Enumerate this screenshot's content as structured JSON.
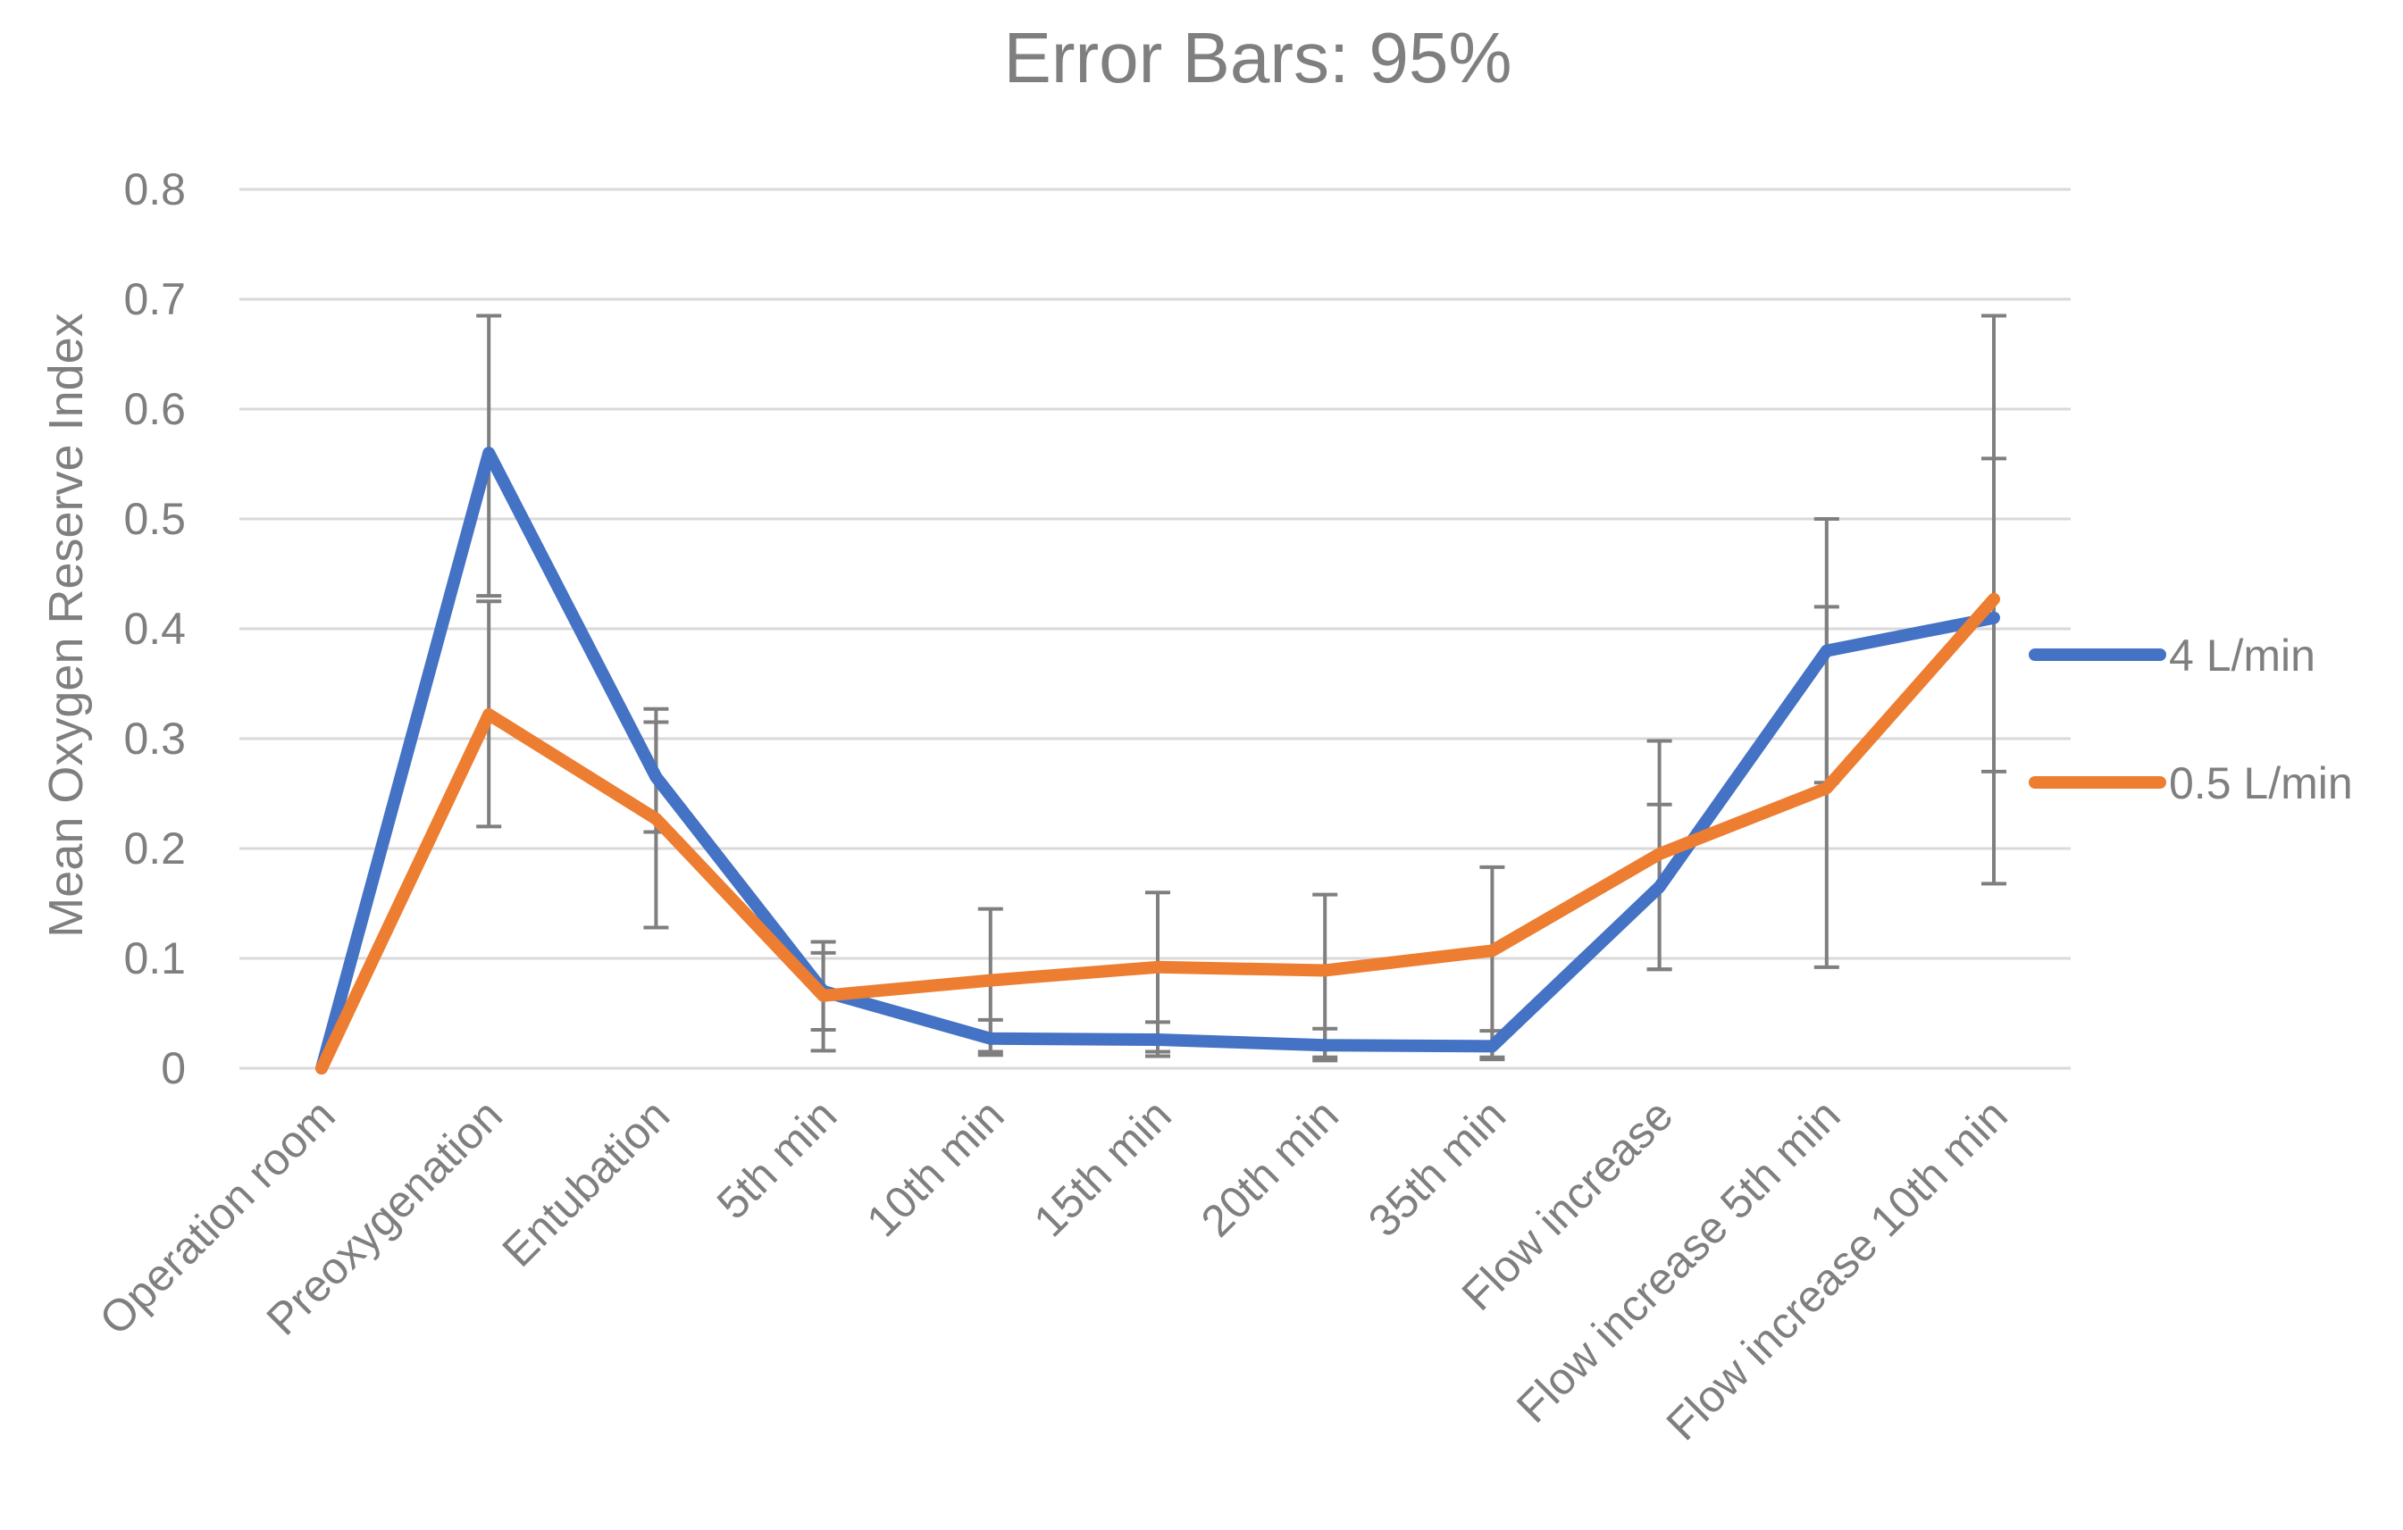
{
  "chart_data": {
    "type": "line",
    "title": "Error Bars: 95%",
    "xlabel": "",
    "ylabel": "Mean Oxygen Reserve Index",
    "ylim": [
      0,
      0.8
    ],
    "y_ticks": [
      "0",
      "0.1",
      "0.2",
      "0.3",
      "0.4",
      "0.5",
      "0.6",
      "0.7",
      "0.8"
    ],
    "grid": true,
    "legend_position": "right",
    "categories": [
      "Operation room",
      "Preoxygenation",
      "Entubation",
      "5th min",
      "10th min",
      "15th min",
      "20th min",
      "35th min",
      "Flow increase",
      "Flow increase 5th min",
      "Flow increase 10th min"
    ],
    "series": [
      {
        "name": "4 L/min",
        "color": "#4472c4",
        "values": [
          0.0,
          0.56,
          0.265,
          0.07,
          0.027,
          0.026,
          0.021,
          0.02,
          0.165,
          0.38,
          0.41
        ],
        "error_low": [
          0.0,
          0.43,
          0.215,
          0.035,
          0.012,
          0.011,
          0.007,
          0.008,
          0.09,
          0.26,
          0.27
        ],
        "error_high": [
          0.0,
          0.685,
          0.315,
          0.105,
          0.044,
          0.042,
          0.036,
          0.034,
          0.24,
          0.5,
          0.555
        ]
      },
      {
        "name": "0.5 L/min",
        "color": "#ed7d31",
        "values": [
          0.0,
          0.322,
          0.227,
          0.066,
          0.08,
          0.092,
          0.089,
          0.107,
          0.195,
          0.255,
          0.427
        ],
        "error_low": [
          0.0,
          0.22,
          0.128,
          0.016,
          0.015,
          0.015,
          0.01,
          0.01,
          0.09,
          0.092,
          0.168
        ],
        "error_high": [
          0.0,
          0.425,
          0.327,
          0.115,
          0.145,
          0.16,
          0.158,
          0.183,
          0.298,
          0.42,
          0.685
        ]
      }
    ],
    "errorbar_color": "#7f7f7f"
  }
}
